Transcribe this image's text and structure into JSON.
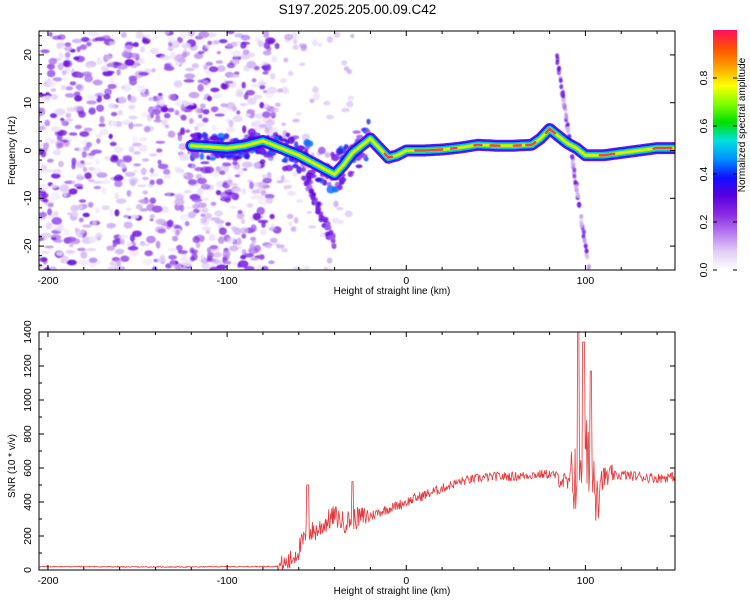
{
  "title": "S197.2025.205.00.09.C42",
  "chart_data": [
    {
      "type": "heatmap",
      "xlabel": "Height of straight line (km)",
      "ylabel": "Frequency (Hz)",
      "xlim": [
        -205,
        150
      ],
      "ylim": [
        -25,
        25
      ],
      "xticks": [
        -200,
        -100,
        0,
        100
      ],
      "yticks": [
        -20,
        -10,
        0,
        10,
        20
      ],
      "colorbar": {
        "label": "Normalized spectral amplitude",
        "range": [
          0,
          1
        ],
        "ticks": [
          "0.0",
          "0.2",
          "0.4",
          "0.6",
          "0.8"
        ],
        "colors": [
          "#ffffff",
          "#e2cdf7",
          "#b77af0",
          "#8a2be2",
          "#5a00e0",
          "#1010ff",
          "#0090ff",
          "#00e0e0",
          "#00e000",
          "#80ff00",
          "#ffff00",
          "#ffa000",
          "#ff5000",
          "#ff1060"
        ]
      },
      "ridge": {
        "x": [
          -120,
          -100,
          -90,
          -80,
          -70,
          -60,
          -55,
          -50,
          -45,
          -40,
          -35,
          -30,
          -25,
          -20,
          -15,
          -10,
          -5,
          0,
          10,
          20,
          30,
          40,
          50,
          60,
          70,
          75,
          80,
          85,
          90,
          95,
          100,
          110,
          120,
          130,
          140,
          150
        ],
        "y": [
          1,
          0.5,
          1,
          2,
          0.5,
          -1,
          -2,
          -3,
          -4,
          -5,
          -3,
          -0.5,
          1,
          2.5,
          0.5,
          -1.5,
          -1,
          0,
          0,
          0.2,
          0.6,
          1.2,
          1.0,
          1.0,
          1.2,
          2.5,
          4.5,
          3,
          1.5,
          0.5,
          -1,
          -1,
          -0.5,
          0,
          0.5,
          0.5
        ]
      }
    },
    {
      "type": "line",
      "xlabel": "Height of straight line (km)",
      "ylabel": "SNR (10 * v/v)",
      "xlim": [
        -205,
        150
      ],
      "ylim": [
        0,
        1400
      ],
      "xticks": [
        -200,
        -100,
        0,
        100
      ],
      "yticks": [
        0,
        200,
        400,
        600,
        800,
        1000,
        1200,
        1400
      ],
      "series": [
        {
          "color": "#e8373a",
          "x": [
            -205,
            -180,
            -150,
            -120,
            -100,
            -80,
            -70,
            -65,
            -60,
            -55,
            -50,
            -45,
            -40,
            -35,
            -30,
            -25,
            -20,
            -10,
            0,
            10,
            20,
            30,
            40,
            50,
            60,
            70,
            80,
            85,
            90,
            95,
            98,
            100,
            103,
            107,
            110,
            120,
            130,
            140,
            150
          ],
          "y": [
            20,
            20,
            18,
            18,
            20,
            20,
            22,
            50,
            120,
            220,
            230,
            280,
            320,
            280,
            300,
            310,
            320,
            360,
            400,
            440,
            480,
            520,
            540,
            550,
            550,
            560,
            565,
            550,
            500,
            600,
            700,
            650,
            560,
            540,
            540,
            560,
            550,
            540,
            550
          ]
        }
      ],
      "peaks": [
        {
          "x": 96,
          "y": 1400
        },
        {
          "x": 99,
          "y": 1340
        },
        {
          "x": 103,
          "y": 1170
        },
        {
          "x": -30,
          "y": 520
        },
        {
          "x": -55,
          "y": 500
        }
      ]
    }
  ]
}
